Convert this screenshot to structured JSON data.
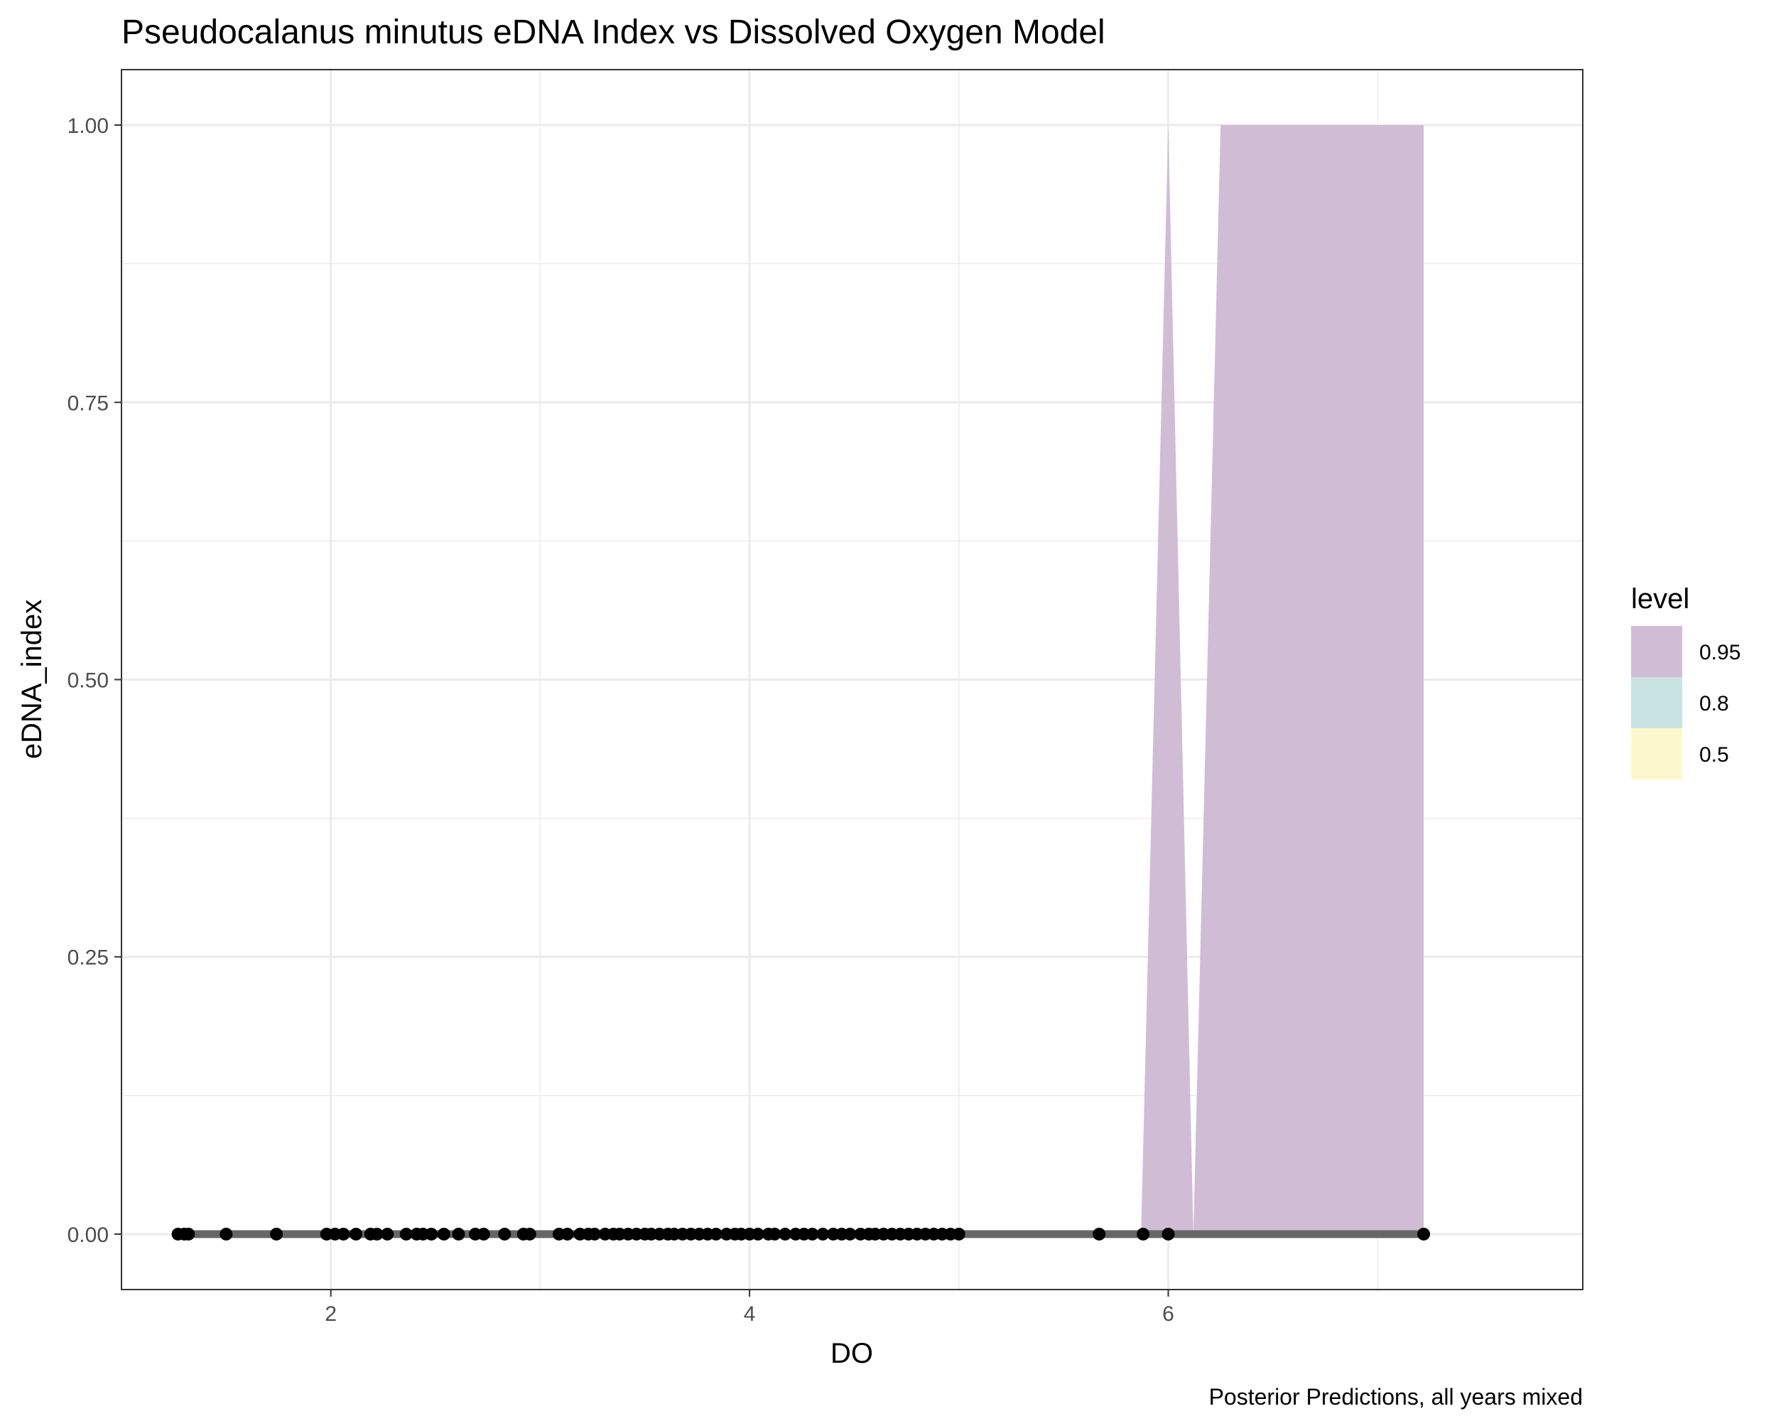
{
  "chart_data": {
    "type": "area",
    "title": "Pseudocalanus minutus eDNA Index vs Dissolved Oxygen Model",
    "caption": "Posterior Predictions, all years mixed",
    "xlabel": "DO",
    "ylabel": "eDNA_index",
    "xlim": [
      1.0,
      7.98
    ],
    "ylim": [
      -0.05,
      1.05
    ],
    "x_ticks": [
      2,
      4,
      6
    ],
    "x_tick_labels": [
      "2",
      "4",
      "6"
    ],
    "y_ticks": [
      0,
      0.25,
      0.5,
      0.75,
      1.0
    ],
    "y_tick_labels": [
      "0.00",
      "0.25",
      "0.50",
      "0.75",
      "1.00"
    ],
    "grid": true,
    "legend": {
      "title": "level",
      "position": "right",
      "entries": [
        {
          "label": "0.95",
          "color": "#d0bdd5"
        },
        {
          "label": "0.8",
          "color": "#c8e3e1"
        },
        {
          "label": "0.5",
          "color": "#fdf8cc"
        }
      ]
    },
    "ribbon_95": {
      "x": [
        5.87,
        6.0,
        6.12,
        6.25,
        7.22
      ],
      "upper": [
        0.0,
        1.0,
        0.0,
        1.0,
        1.0
      ],
      "lower": [
        0.0,
        0.0,
        0.0,
        0.0,
        0.0
      ]
    },
    "prediction_line": {
      "x": [
        1.27,
        7.22
      ],
      "y": [
        0,
        0
      ],
      "color": "#666666"
    },
    "points": {
      "y": 0,
      "color": "#000000",
      "x": [
        1.27,
        1.3,
        1.32,
        1.5,
        1.74,
        1.98,
        2.02,
        2.06,
        2.12,
        2.19,
        2.22,
        2.27,
        2.36,
        2.41,
        2.44,
        2.48,
        2.54,
        2.61,
        2.69,
        2.73,
        2.83,
        2.92,
        2.95,
        3.09,
        3.13,
        3.19,
        3.23,
        3.26,
        3.31,
        3.35,
        3.38,
        3.42,
        3.46,
        3.5,
        3.53,
        3.57,
        3.61,
        3.64,
        3.68,
        3.72,
        3.76,
        3.8,
        3.84,
        3.89,
        3.93,
        3.96,
        4.0,
        4.04,
        4.09,
        4.12,
        4.17,
        4.22,
        4.26,
        4.3,
        4.35,
        4.4,
        4.44,
        4.48,
        4.53,
        4.57,
        4.6,
        4.64,
        4.68,
        4.72,
        4.76,
        4.8,
        4.84,
        4.88,
        4.92,
        4.96,
        5.0,
        5.67,
        5.88,
        6.0,
        7.22
      ]
    }
  }
}
